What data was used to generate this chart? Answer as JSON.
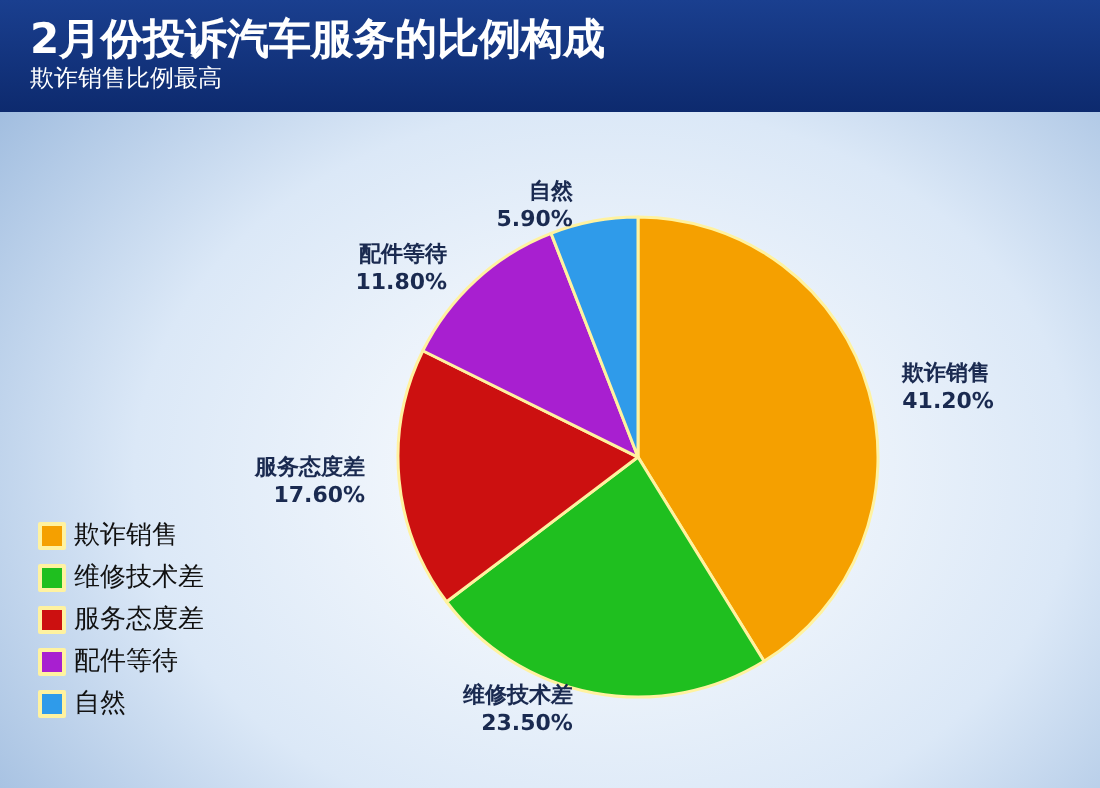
{
  "chart_data": {
    "type": "pie",
    "title": "2月份投诉汽车服务的比例构成",
    "subtitle": "欺诈销售比例最高",
    "categories": [
      "欺诈销售",
      "维修技术差",
      "服务态度差",
      "配件等待",
      "自然"
    ],
    "values": [
      41.2,
      23.5,
      17.6,
      11.8,
      5.9
    ],
    "value_labels": [
      "41.20%",
      "23.50%",
      "17.60%",
      "11.80%",
      "5.90%"
    ],
    "colors": [
      "#f5a000",
      "#1fbf1f",
      "#cc1010",
      "#a81fd0",
      "#2f9bea"
    ],
    "legend": "bottom left"
  }
}
